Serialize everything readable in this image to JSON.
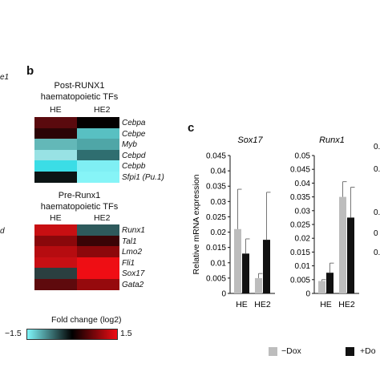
{
  "left_edge_fragments": [
    "e1",
    "d"
  ],
  "panel_b": {
    "letter": "b",
    "post_block": {
      "title_line1": "Post-RUNX1",
      "title_line2": "haematopoietic TFs",
      "columns": [
        "HE",
        "HE2"
      ],
      "genes": [
        "Cebpa",
        "Cebpe",
        "Myb",
        "Cebpd",
        "Cebpb",
        "Sfpi1 (Pu.1)"
      ],
      "colors": [
        [
          "#5a0a0e",
          "#050101"
        ],
        [
          "#2b0406",
          "#58c0c2"
        ],
        [
          "#63b8b8",
          "#4fa6a7"
        ],
        [
          "#98e2e4",
          "#2f6e70"
        ],
        [
          "#3bdde6",
          "#7feff4"
        ],
        [
          "#0c1414",
          "#86f4f7"
        ]
      ]
    },
    "pre_block": {
      "title_line1": "Pre-Runx1",
      "title_line2": "haematopoietic TFs",
      "columns": [
        "HE",
        "HE2"
      ],
      "genes": [
        "Runx1",
        "Tal1",
        "Lmo2",
        "Fli1",
        "Sox17",
        "Gata2"
      ],
      "colors": [
        [
          "#c80f12",
          "#2e5a5c"
        ],
        [
          "#8a080b",
          "#3a0406"
        ],
        [
          "#b60c10",
          "#8c080b"
        ],
        [
          "#c80f14",
          "#ee0e14"
        ],
        [
          "#2b3f40",
          "#f00d14"
        ],
        [
          "#5e0a0d",
          "#960a0d"
        ]
      ]
    },
    "colorbar": {
      "label": "Fold change (log2)",
      "min_label": "−1.5",
      "max_label": "1.5",
      "stop_low": "#7ff6fa",
      "stop_mid": "#000000",
      "stop_high": "#f00c14"
    }
  },
  "panel_c": {
    "letter": "c",
    "ylabel": "Relative mRNA expression",
    "legend": {
      "minus": "−Dox",
      "plus": "+Do"
    },
    "colors": {
      "minus_dox": "#bdbdbd",
      "plus_dox": "#111111"
    },
    "third_axis_ticks": [
      "0.",
      "0.0",
      "0.0",
      "0",
      "0.0"
    ],
    "chart_data": [
      {
        "type": "bar",
        "title": "Sox17",
        "categories": [
          "HE",
          "HE2"
        ],
        "series": [
          {
            "name": "−Dox",
            "values": [
              0.021,
              0.005
            ],
            "errors": [
              0.013,
              0.0015
            ]
          },
          {
            "name": "+Dox",
            "values": [
              0.013,
              0.0175
            ],
            "errors": [
              0.0048,
              0.0155
            ]
          }
        ],
        "ylim": [
          0,
          0.045
        ],
        "yticks": [
          "0",
          "0.005",
          "0.01",
          "0.015",
          "0.02",
          "0.025",
          "0.03",
          "0.035",
          "0.04",
          "0.045"
        ]
      },
      {
        "type": "bar",
        "title": "Runx1",
        "categories": [
          "HE",
          "HE2"
        ],
        "series": [
          {
            "name": "−Dox",
            "values": [
              0.0045,
              0.035
            ],
            "errors": [
              0.0005,
              0.0055
            ]
          },
          {
            "name": "+Dox",
            "values": [
              0.0075,
              0.0275
            ],
            "errors": [
              0.0035,
              0.011
            ]
          }
        ],
        "ylim": [
          0,
          0.05
        ],
        "yticks": [
          "0",
          "0.005",
          "0.01",
          "0.015",
          "0.02",
          "0.025",
          "0.03",
          "0.035",
          "0.04",
          "0.045",
          "0.05"
        ]
      }
    ]
  }
}
